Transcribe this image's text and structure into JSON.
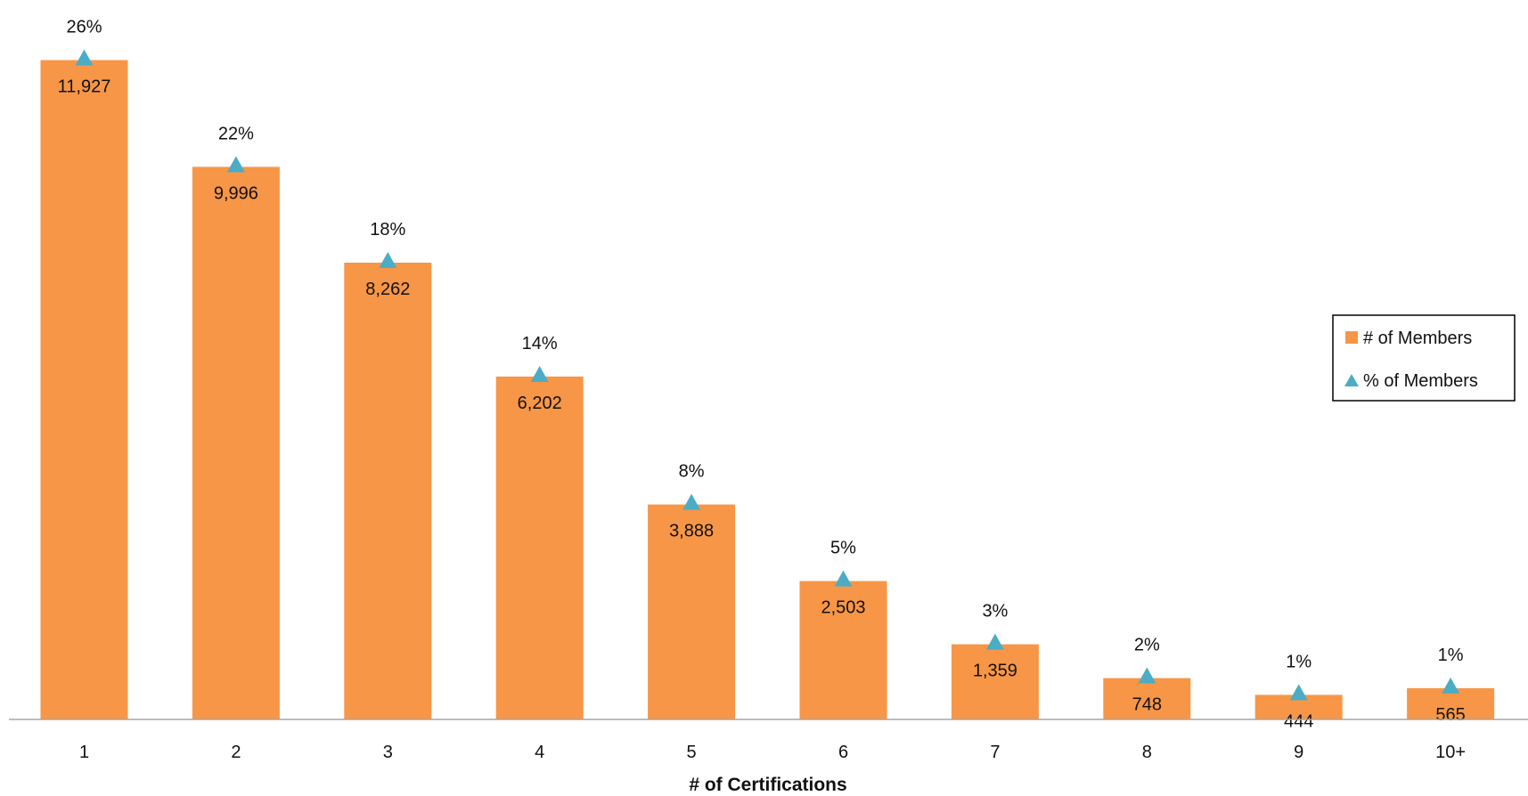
{
  "chart_data": {
    "type": "bar",
    "categories": [
      "1",
      "2",
      "3",
      "4",
      "5",
      "6",
      "7",
      "8",
      "9",
      "10+"
    ],
    "xlabel": "# of Certifications",
    "ylabel": "",
    "title": "",
    "grid": false,
    "legend_position": "right",
    "series": [
      {
        "name": "# of Members",
        "kind": "bar",
        "color": "#F79646",
        "values": [
          11927,
          9996,
          8262,
          6202,
          3888,
          2503,
          1359,
          748,
          444,
          565
        ],
        "labels": [
          "11,927",
          "9,996",
          "8,262",
          "6,202",
          "3,888",
          "2,503",
          "1,359",
          "748",
          "444",
          "565"
        ]
      },
      {
        "name": "% of Members",
        "kind": "marker-triangle",
        "color": "#4BACC6",
        "values": [
          26,
          22,
          18,
          14,
          8,
          5,
          3,
          2,
          1,
          1
        ],
        "labels": [
          "26%",
          "22%",
          "18%",
          "14%",
          "8%",
          "5%",
          "3%",
          "2%",
          "1%",
          "1%"
        ]
      }
    ],
    "ylim": [
      0,
      12000
    ]
  }
}
